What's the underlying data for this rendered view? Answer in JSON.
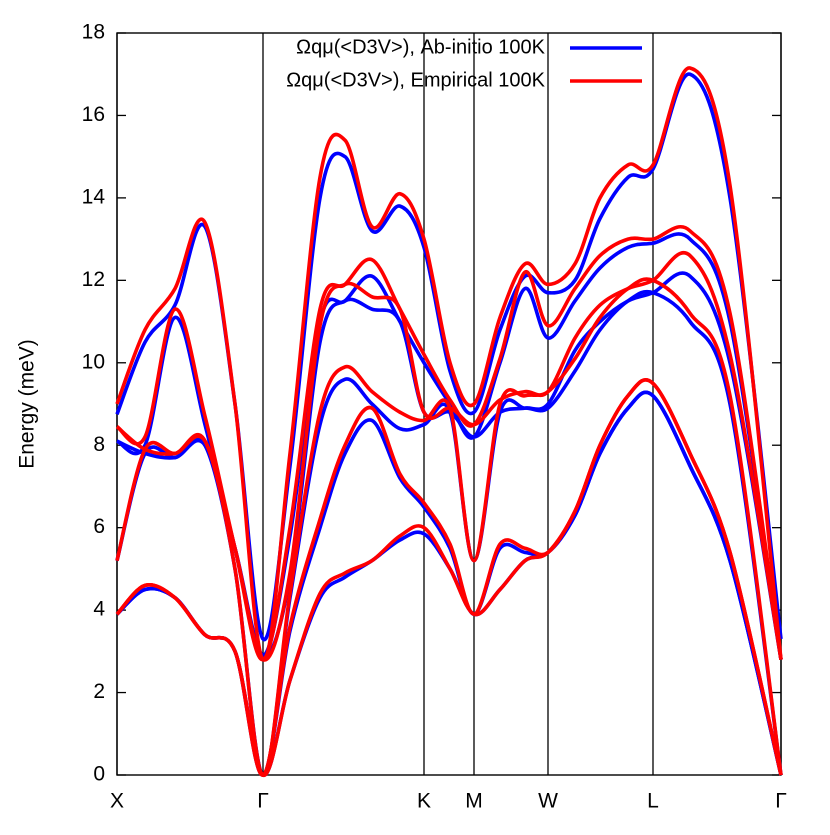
{
  "chart_data": {
    "type": "line",
    "ylabel": "Energy (meV)",
    "x": [
      0,
      0.28,
      0.58,
      0.88,
      1.18,
      1.46,
      1.73,
      2.03,
      2.28,
      2.55,
      2.83,
      3.07,
      3.33,
      3.57,
      3.83,
      4.08,
      4.31,
      4.58,
      4.83,
      5.11,
      5.36,
      5.73,
      6.13,
      6.64
    ],
    "xlim": [
      0,
      6.64
    ],
    "xticks": [
      {
        "value": 0,
        "label": "X"
      },
      {
        "value": 1.46,
        "label": "Γ"
      },
      {
        "value": 3.07,
        "label": "K"
      },
      {
        "value": 3.57,
        "label": "M"
      },
      {
        "value": 4.31,
        "label": "W"
      },
      {
        "value": 5.36,
        "label": "L"
      },
      {
        "value": 6.64,
        "label": "Γ"
      }
    ],
    "ylim": [
      0,
      18
    ],
    "yticks": [
      0,
      2,
      4,
      6,
      8,
      10,
      12,
      14,
      16,
      18
    ],
    "legend": "top-right",
    "series": [
      {
        "name": "Ωqμ(<D3V>), Ab-initio 100K",
        "color": "#0000ff",
        "values": [
          [
            3.9,
            4.5,
            4.3,
            3.4,
            3.0,
            0,
            2.3,
            4.3,
            4.8,
            5.2,
            5.7,
            5.85,
            5.0,
            3.9,
            4.5,
            5.2,
            5.4,
            6.3,
            7.8,
            8.9,
            9.2,
            7.5,
            5.2,
            0
          ],
          [
            3.9,
            4.5,
            4.3,
            3.4,
            3.0,
            0,
            3.5,
            6.0,
            7.8,
            8.6,
            7.2,
            6.5,
            5.5,
            3.9,
            5.5,
            5.4,
            5.4,
            6.3,
            7.8,
            8.9,
            9.2,
            7.5,
            5.2,
            0
          ],
          [
            5.2,
            7.8,
            7.7,
            8.0,
            5.0,
            0,
            4.3,
            8.5,
            9.6,
            9.0,
            8.4,
            8.5,
            8.8,
            5.2,
            8.8,
            8.9,
            8.9,
            9.8,
            10.8,
            11.5,
            11.7,
            11.0,
            9.0,
            0
          ],
          [
            8.1,
            7.8,
            7.7,
            8.0,
            5.5,
            2.9,
            4.8,
            10.5,
            11.5,
            11.3,
            11.0,
            8.8,
            8.8,
            8.2,
            8.8,
            8.9,
            9.0,
            10.3,
            11.0,
            11.5,
            11.7,
            12.1,
            10.0,
            2.8
          ],
          [
            8.1,
            8.0,
            11.1,
            8.5,
            5.5,
            2.9,
            5.8,
            11.0,
            11.5,
            12.1,
            11.0,
            10.0,
            9.0,
            8.2,
            10.0,
            11.8,
            10.6,
            11.5,
            12.3,
            12.8,
            12.9,
            13.0,
            11.0,
            2.8
          ],
          [
            8.75,
            10.5,
            11.4,
            13.3,
            9.0,
            3.3,
            7.5,
            14.0,
            15.0,
            13.2,
            13.8,
            12.8,
            9.8,
            8.8,
            10.8,
            12.1,
            11.7,
            12.0,
            13.5,
            14.5,
            14.7,
            17.0,
            14.0,
            3.3
          ]
        ]
      },
      {
        "name": "Ωqμ(<D3V>), Empirical 100K",
        "color": "#ff0000",
        "values": [
          [
            3.9,
            4.6,
            4.3,
            3.4,
            3.0,
            0,
            2.3,
            4.4,
            4.9,
            5.2,
            5.8,
            6.0,
            5.0,
            3.9,
            4.5,
            5.2,
            5.4,
            6.4,
            8.0,
            9.2,
            9.5,
            7.8,
            5.4,
            0
          ],
          [
            3.9,
            4.6,
            4.3,
            3.4,
            3.0,
            0,
            3.6,
            6.2,
            8.0,
            8.9,
            7.3,
            6.6,
            5.6,
            3.9,
            5.6,
            5.5,
            5.4,
            6.4,
            8.0,
            9.2,
            9.5,
            7.8,
            5.4,
            0
          ],
          [
            5.2,
            7.9,
            7.8,
            8.1,
            5.0,
            0,
            4.4,
            8.8,
            9.9,
            9.3,
            8.8,
            8.6,
            8.9,
            5.2,
            9.0,
            9.2,
            9.3,
            10.1,
            11.1,
            11.8,
            12.0,
            11.2,
            9.2,
            0
          ],
          [
            8.45,
            7.9,
            7.8,
            8.1,
            5.5,
            2.8,
            4.9,
            10.9,
            11.9,
            11.6,
            11.3,
            8.8,
            8.9,
            8.5,
            9.1,
            9.3,
            9.3,
            10.6,
            11.4,
            11.8,
            12.0,
            12.6,
            10.2,
            2.8
          ],
          [
            8.45,
            8.2,
            11.3,
            8.7,
            5.5,
            2.8,
            6.0,
            11.3,
            11.9,
            12.5,
            11.3,
            10.2,
            9.1,
            8.5,
            10.1,
            12.2,
            10.9,
            11.8,
            12.6,
            13.0,
            13.0,
            13.2,
            11.2,
            2.8
          ],
          [
            9.0,
            10.8,
            11.8,
            13.4,
            9.0,
            2.8,
            7.8,
            14.5,
            15.4,
            13.3,
            14.1,
            13.0,
            10.0,
            9.0,
            11.1,
            12.4,
            11.9,
            12.4,
            14.0,
            14.8,
            14.8,
            17.15,
            14.3,
            2.8
          ]
        ]
      }
    ]
  }
}
